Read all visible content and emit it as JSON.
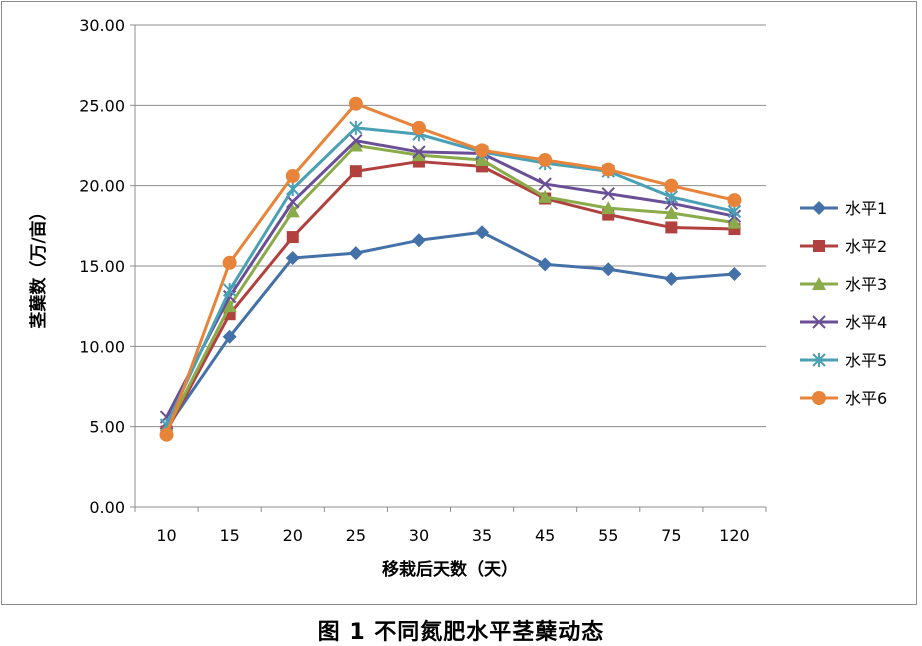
{
  "caption": "图 1 不同氮肥水平茎蘖动态",
  "chart_data": {
    "type": "line",
    "title": "",
    "xlabel": "移栽后天数（天）",
    "ylabel": "茎蘖数（万/亩）",
    "categories": [
      "10",
      "15",
      "20",
      "25",
      "30",
      "35",
      "45",
      "55",
      "75",
      "120"
    ],
    "ylim": [
      0,
      30
    ],
    "yticks": [
      "0.00",
      "5.00",
      "10.00",
      "15.00",
      "20.00",
      "25.00",
      "30.00"
    ],
    "grid": "horizontal",
    "legend_position": "right",
    "series": [
      {
        "name": "水平1",
        "color": "#4472a8",
        "marker": "diamond",
        "values": [
          4.9,
          10.6,
          15.5,
          15.8,
          16.6,
          17.1,
          15.1,
          14.8,
          14.2,
          14.5
        ]
      },
      {
        "name": "水平2",
        "color": "#b0413e",
        "marker": "square",
        "values": [
          4.7,
          12.0,
          16.8,
          20.9,
          21.5,
          21.2,
          19.2,
          18.2,
          17.4,
          17.3
        ]
      },
      {
        "name": "水平3",
        "color": "#8aab4a",
        "marker": "triangle",
        "values": [
          4.8,
          12.5,
          18.4,
          22.5,
          21.9,
          21.6,
          19.3,
          18.6,
          18.3,
          17.7
        ]
      },
      {
        "name": "水平4",
        "color": "#6a4f97",
        "marker": "x",
        "values": [
          5.6,
          13.1,
          19.0,
          22.8,
          22.1,
          22.0,
          20.1,
          19.5,
          18.9,
          18.1
        ]
      },
      {
        "name": "水平5",
        "color": "#4aa0b5",
        "marker": "asterisk",
        "values": [
          5.1,
          13.5,
          19.8,
          23.6,
          23.2,
          22.1,
          21.4,
          20.9,
          19.3,
          18.4
        ]
      },
      {
        "name": "水平6",
        "color": "#e8843a",
        "marker": "circle",
        "values": [
          4.5,
          15.2,
          20.6,
          25.1,
          23.6,
          22.2,
          21.6,
          21.0,
          20.0,
          19.1
        ]
      }
    ]
  }
}
